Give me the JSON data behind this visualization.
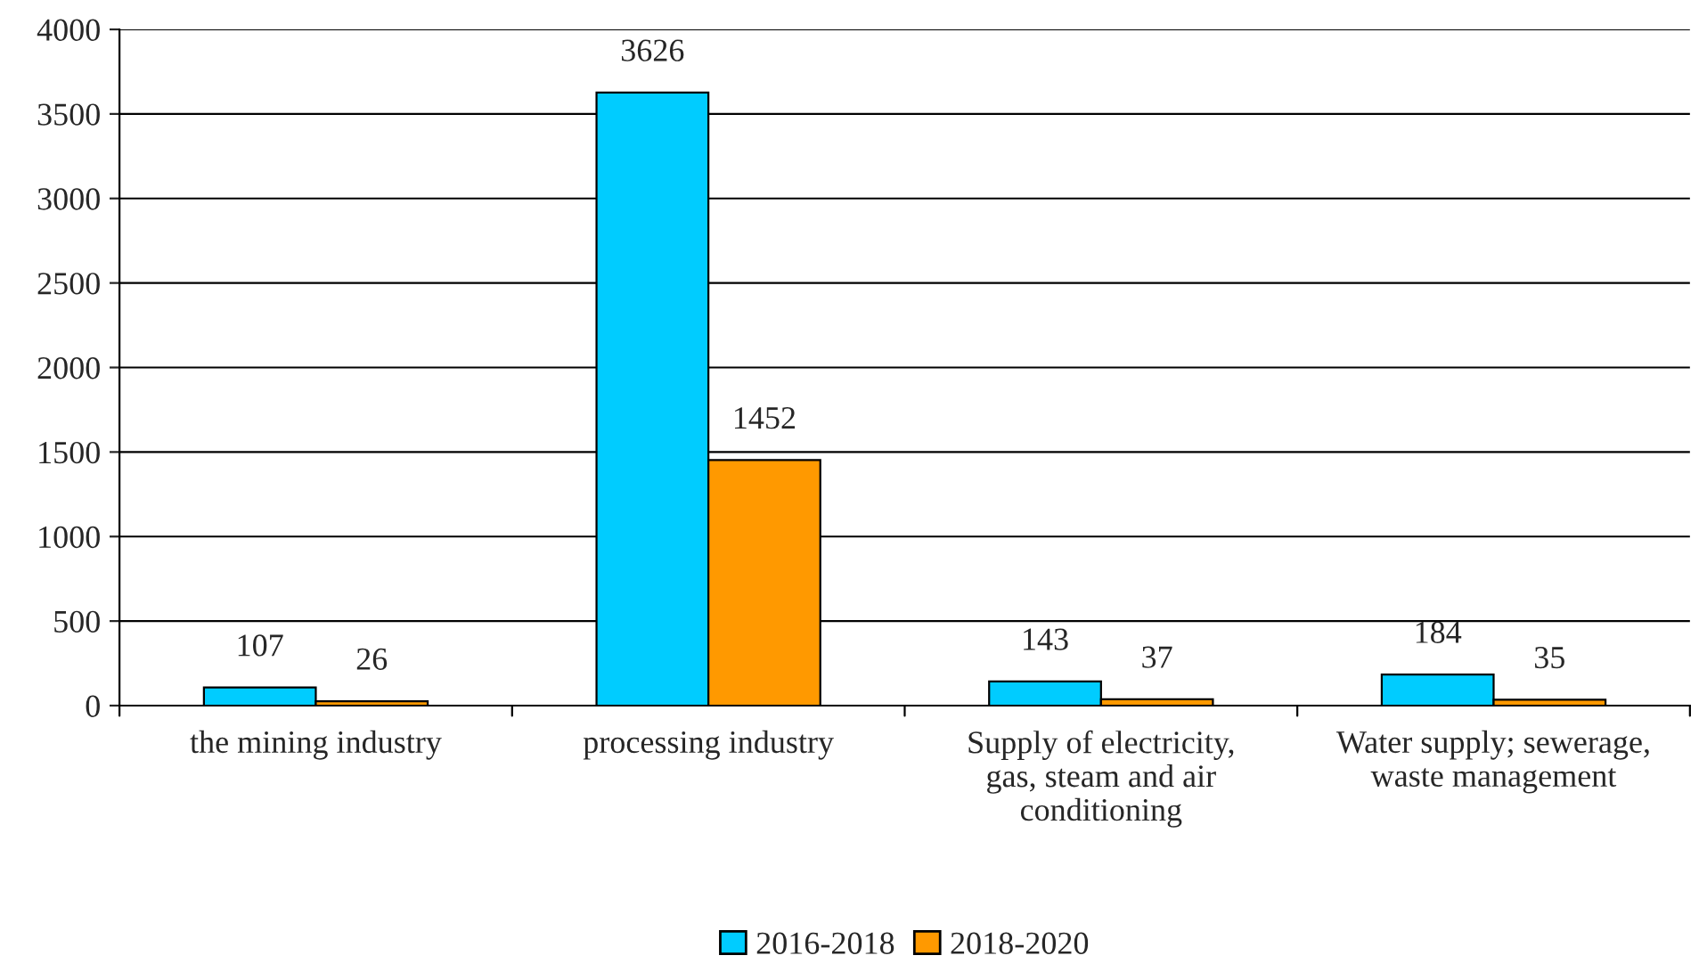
{
  "chart_data": {
    "type": "bar",
    "categories": [
      "the mining industry",
      "processing industry",
      "Supply of electricity,\ngas, steam and air\nconditioning",
      "Water supply; sewerage,\nwaste management"
    ],
    "series": [
      {
        "name": "2016-2018",
        "color": "#00ccff",
        "values": [
          107,
          3626,
          143,
          184
        ]
      },
      {
        "name": "2018-2020",
        "color": "#ff9900",
        "values": [
          26,
          1452,
          37,
          35
        ]
      }
    ],
    "ylim": [
      0,
      4000
    ],
    "yticks": [
      0,
      500,
      1000,
      1500,
      2000,
      2500,
      3000,
      3500,
      4000
    ],
    "grid": "y",
    "legend": "bottom",
    "data_labels": true
  }
}
